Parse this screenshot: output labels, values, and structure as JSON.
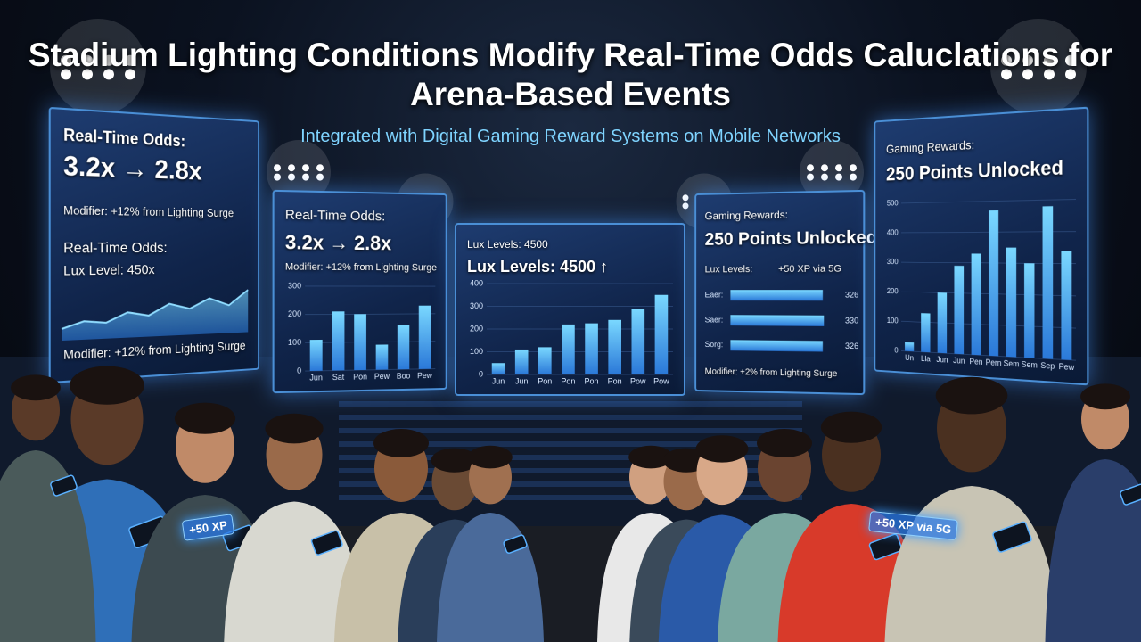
{
  "title": "Stadium Lighting Conditions Modify Real-Time Odds Caluclations for Arena-Based Events",
  "subtitle": "Integrated with Digital Gaming Reward Systems on Mobile Networks",
  "screens": [
    {
      "texts": [
        "Real-Time Odds:",
        "3.2x → 2.8x",
        "Modifier: +12% from Lighting Surge",
        "Real-Time Odds:",
        "Lux Level: 450x",
        "Modifier: +12% from Lighting Surge"
      ],
      "chart": {
        "type": "area",
        "values": [
          20,
          32,
          28,
          45,
          38,
          58,
          48,
          66,
          52,
          80
        ],
        "ylim": [
          0,
          100
        ]
      }
    },
    {
      "texts": [
        "Real-Time Odds:",
        "3.2x → 2.8x",
        "Modifier: +12% from Lighting Surge"
      ],
      "chart": {
        "type": "bar",
        "categories": [
          "Jun",
          "Sat",
          "Pon",
          "Pew",
          "Boo",
          "Pew"
        ],
        "values": [
          110,
          210,
          200,
          90,
          160,
          230
        ],
        "ylim": [
          0,
          300
        ],
        "yticks": [
          0,
          100,
          200,
          300
        ]
      }
    },
    {
      "texts": [
        "Lux Levels: 4500",
        "Lux Levels: 4500 ↑"
      ],
      "chart": {
        "type": "bar",
        "categories": [
          "Jun",
          "Jun",
          "Pon",
          "Pon",
          "Pon",
          "Pon",
          "Pow",
          "Pow"
        ],
        "values": [
          50,
          110,
          120,
          220,
          225,
          240,
          290,
          350
        ],
        "ylim": [
          0,
          400
        ],
        "yticks": [
          0,
          100,
          200,
          300,
          400
        ]
      }
    },
    {
      "texts": [
        "Gaming Rewards:",
        "250 Points Unlocked",
        "Lux Levels:",
        "+50 XP via 5G",
        "Modifier: +2% from Lighting Surge"
      ],
      "chart": {
        "type": "hbar",
        "categories": [
          "Eaer:",
          "Saer:",
          "Sorg:"
        ],
        "values": [
          326,
          330,
          326
        ],
        "xlim": [
          0,
          350
        ]
      }
    },
    {
      "texts": [
        "Gaming Rewards:",
        "250 Points Unlocked"
      ],
      "chart": {
        "type": "bar",
        "categories": [
          "Un",
          "Lla",
          "Jun",
          "Jun",
          "Pen",
          "Pern",
          "Sem",
          "Sem",
          "Sep",
          "Pew"
        ],
        "values": [
          30,
          130,
          200,
          290,
          330,
          470,
          350,
          300,
          480,
          340
        ],
        "ylim": [
          0,
          500
        ],
        "yticks": [
          0,
          100,
          200,
          300,
          400,
          500
        ]
      }
    }
  ],
  "phone_badges": [
    "+50 XP",
    "+50 XP via 5G"
  ]
}
